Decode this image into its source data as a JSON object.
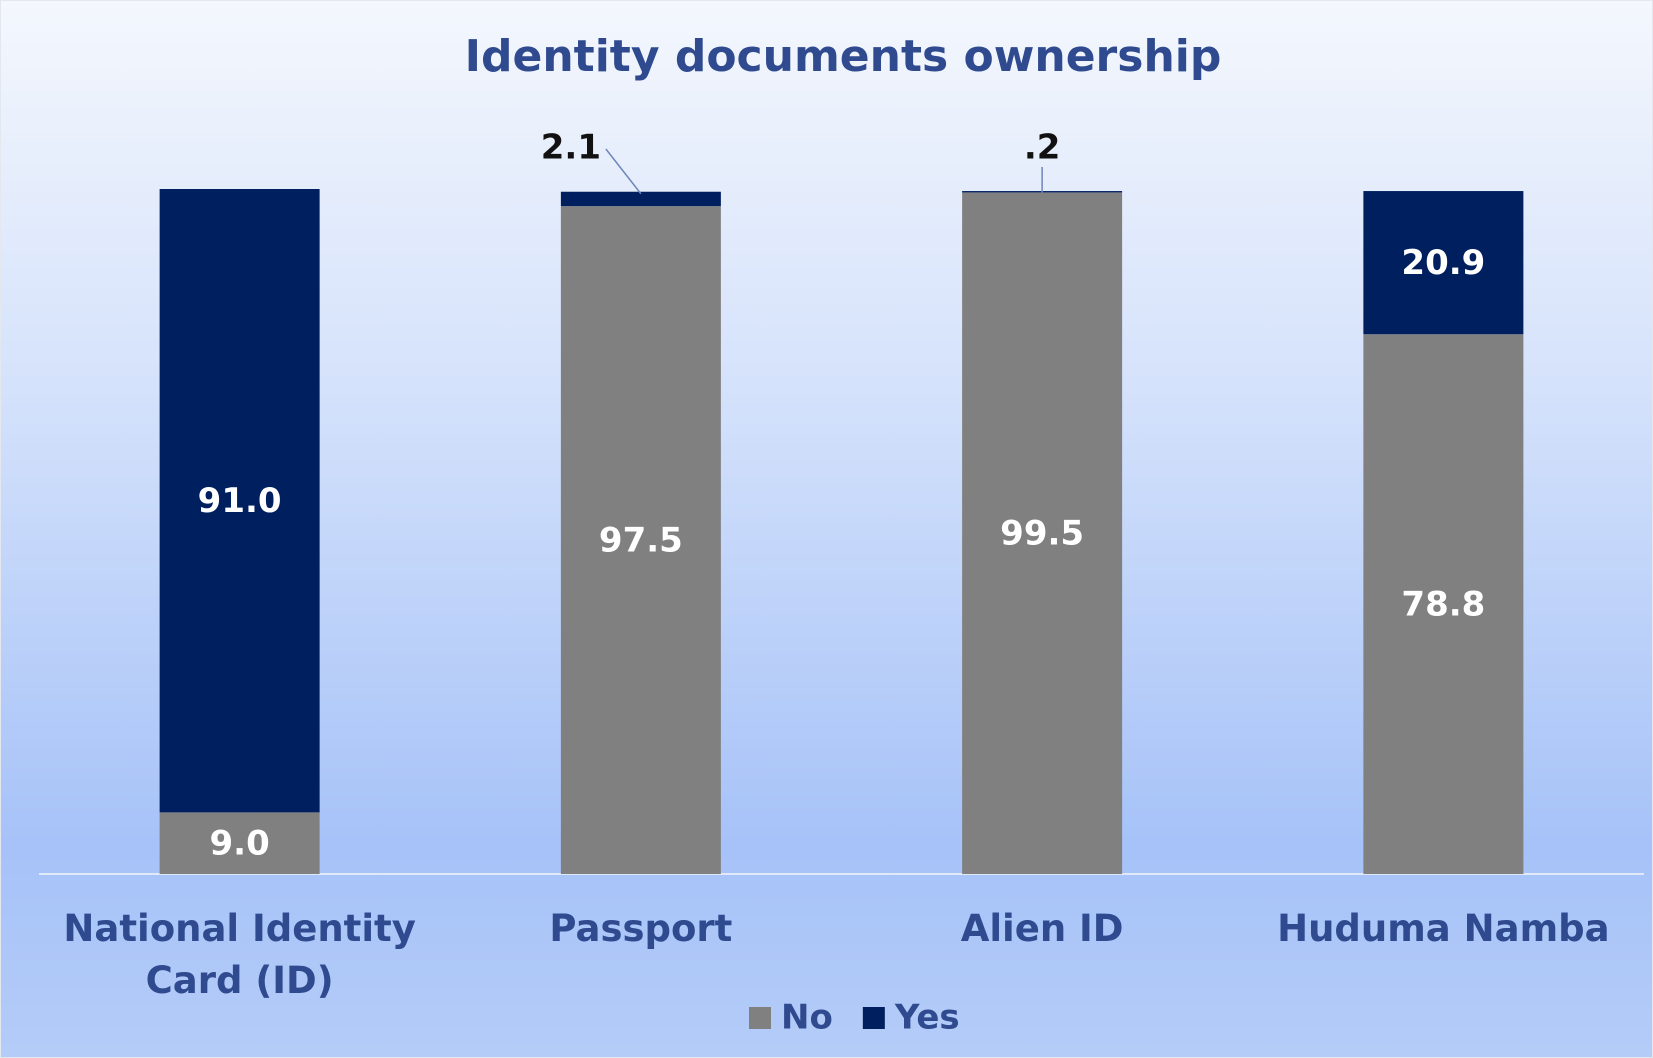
{
  "chart_data": {
    "type": "stacked_bar",
    "title": "Identity documents ownership",
    "categories": [
      "National Identity Card (ID)",
      "Passport",
      "Alien ID",
      "Huduma Namba"
    ],
    "series": [
      {
        "name": "No",
        "color": "#808080",
        "values": [
          9.0,
          97.5,
          99.5,
          78.8
        ],
        "value_labels": [
          "9.0",
          "97.5",
          "99.5",
          "78.8"
        ]
      },
      {
        "name": "Yes",
        "color": "#001f5f",
        "values": [
          91.0,
          2.1,
          0.2,
          20.9
        ],
        "value_labels": [
          "91.0",
          "2.1",
          ".2",
          "20.9"
        ]
      }
    ],
    "ylim": [
      0,
      100
    ],
    "legend": "bottom"
  }
}
